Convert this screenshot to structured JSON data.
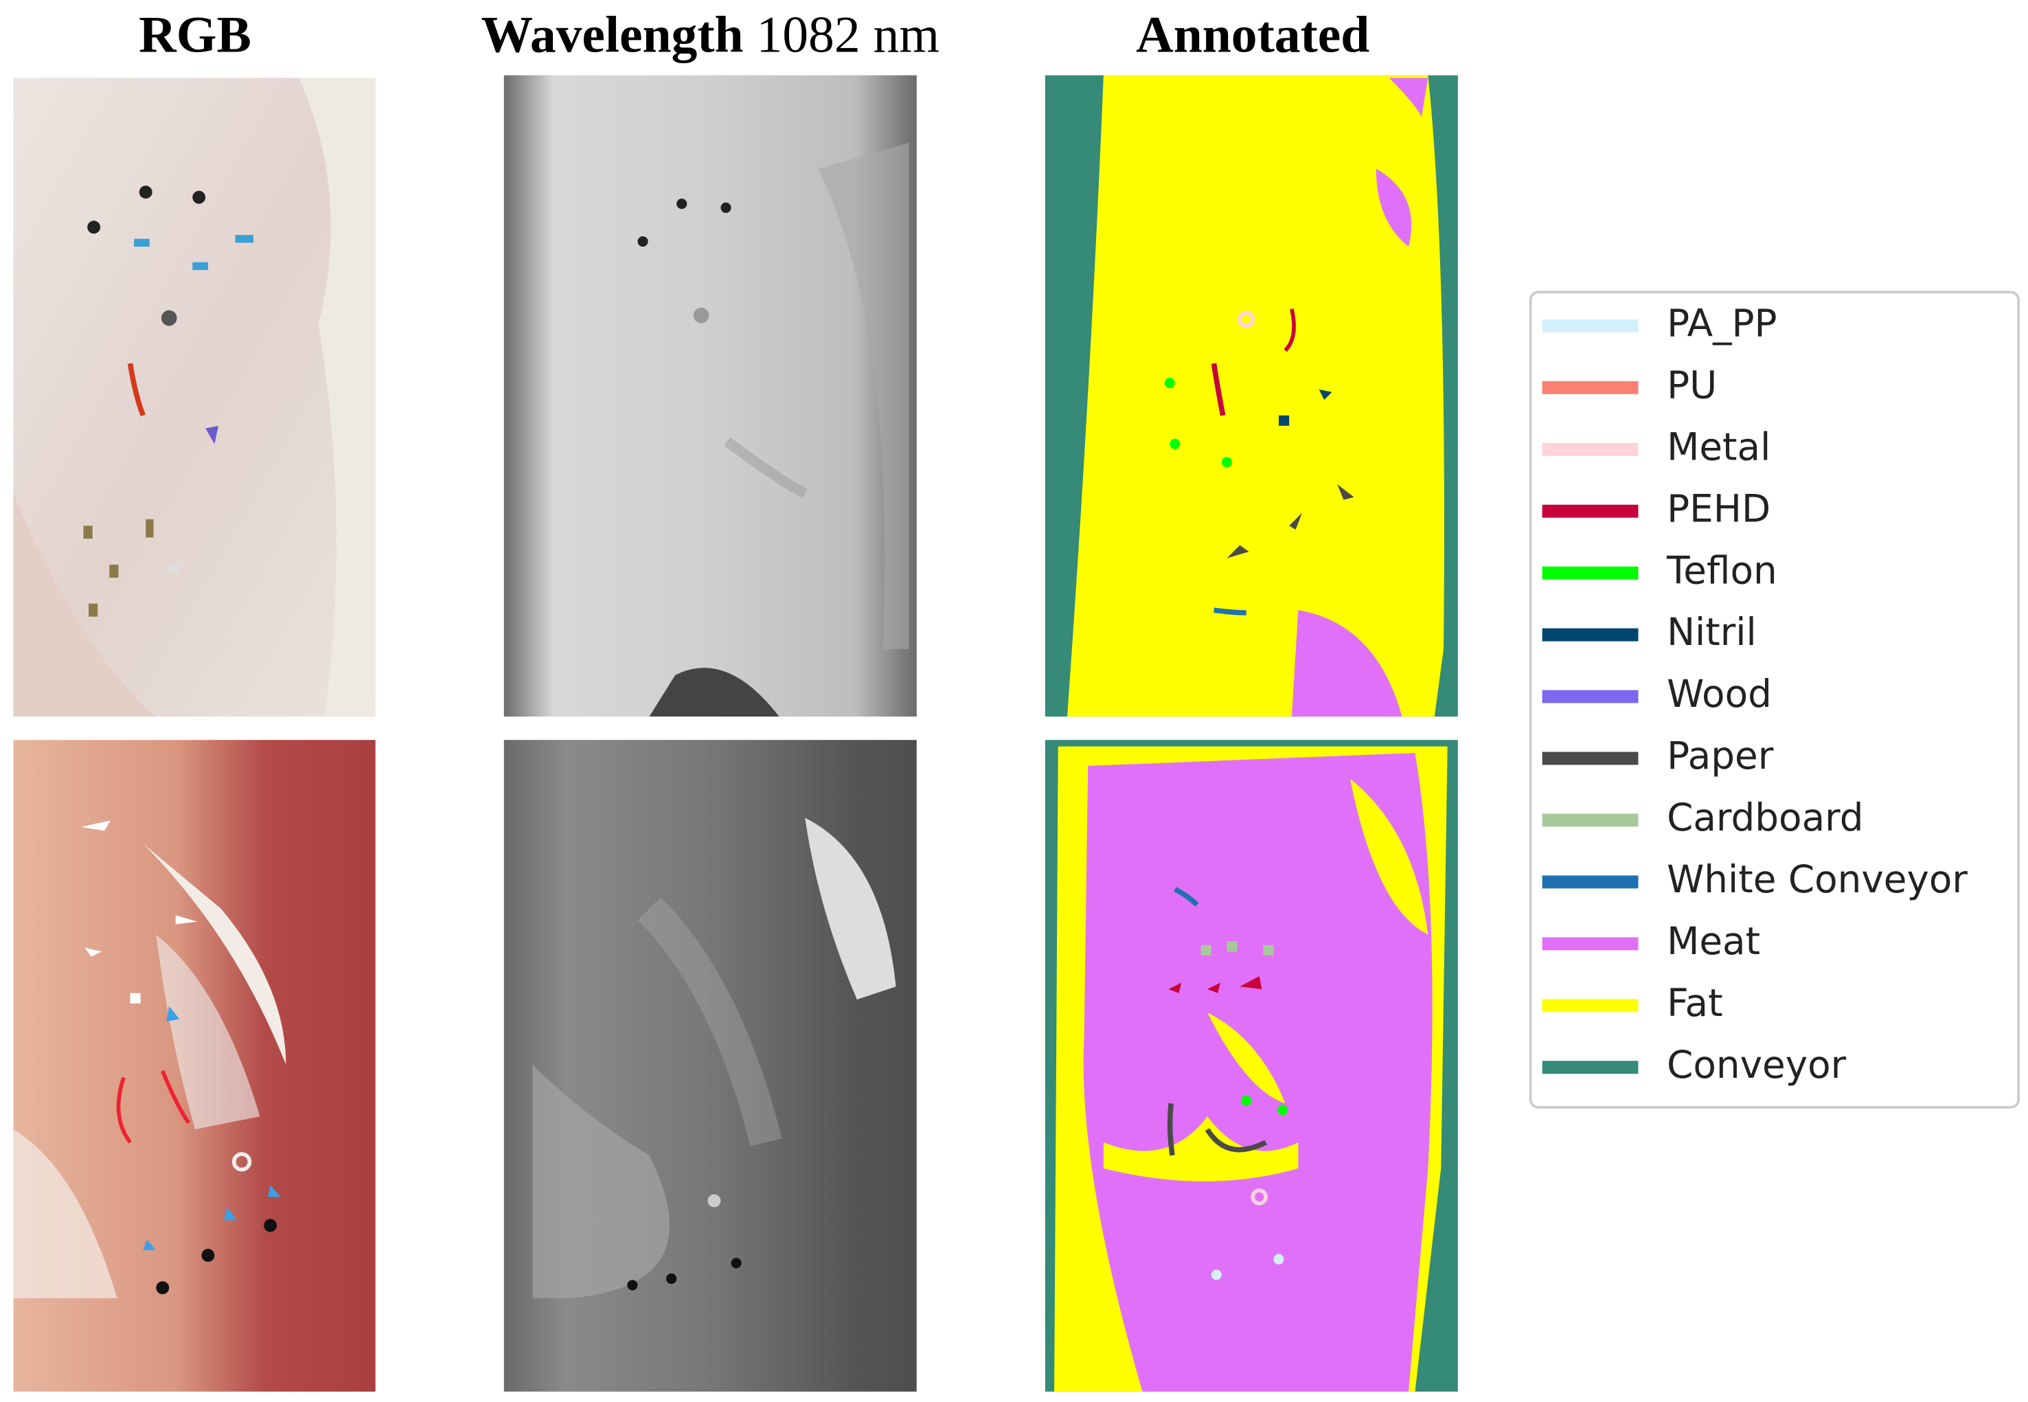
{
  "columns": [
    {
      "title": "RGB"
    },
    {
      "title": "Wavelength",
      "title_suffix": "1082 nm"
    },
    {
      "title": "Annotated"
    }
  ],
  "legend": [
    {
      "label": "PA_PP",
      "color": "#d2effa"
    },
    {
      "label": "PU",
      "color": "#fa8072"
    },
    {
      "label": "Metal",
      "color": "#ffd2dc"
    },
    {
      "label": "PEHD",
      "color": "#c8003c"
    },
    {
      "label": "Teflon",
      "color": "#00ff00"
    },
    {
      "label": "Nitril",
      "color": "#00466e"
    },
    {
      "label": "Wood",
      "color": "#7b68ee"
    },
    {
      "label": "Paper",
      "color": "#4a4a4a"
    },
    {
      "label": "Cardboard",
      "color": "#a8c99a"
    },
    {
      "label": "White Conveyor",
      "color": "#1f72b0"
    },
    {
      "label": "Meat",
      "color": "#e070f8"
    },
    {
      "label": "Fat",
      "color": "#ffff00"
    },
    {
      "label": "Conveyor",
      "color": "#358a78"
    }
  ]
}
